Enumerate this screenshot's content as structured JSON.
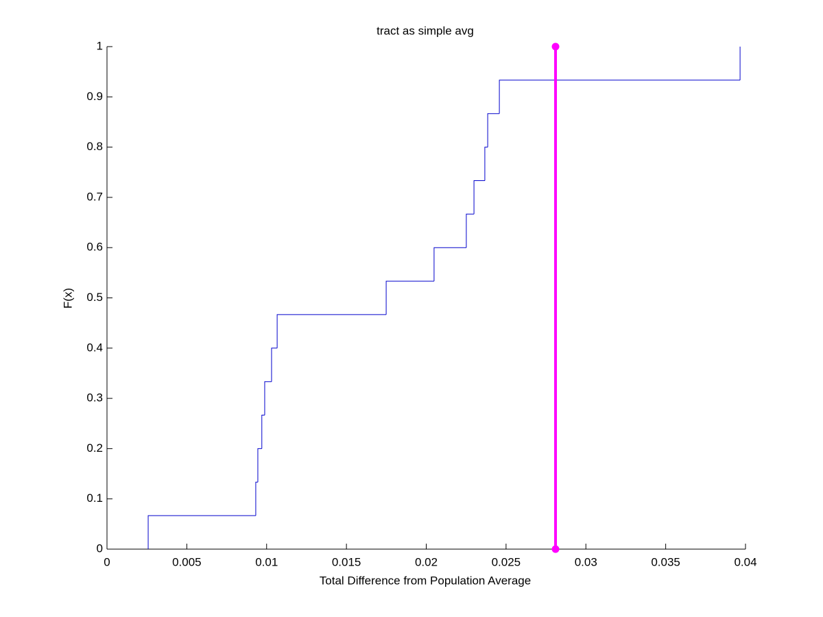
{
  "chart_data": {
    "type": "stairs",
    "title": "tract as simple avg",
    "xlabel": "Total Difference from Population Average",
    "ylabel": "F(x)",
    "xlim": [
      0,
      0.04
    ],
    "ylim": [
      0,
      1
    ],
    "xticks": [
      0,
      0.005,
      0.01,
      0.015,
      0.02,
      0.025,
      0.03,
      0.035,
      0.04
    ],
    "yticks": [
      0,
      0.1,
      0.2,
      0.3,
      0.4,
      0.5,
      0.6,
      0.7,
      0.8,
      0.9,
      1
    ],
    "series": [
      {
        "color": "#0000cc",
        "x": [
          0.00258,
          0.00932,
          0.00945,
          0.0097,
          0.00988,
          0.01031,
          0.01066,
          0.01749,
          0.02049,
          0.02251,
          0.02299,
          0.02367,
          0.02385,
          0.02458,
          0.03966
        ],
        "values": [
          0.0667,
          0.1333,
          0.2,
          0.2667,
          0.3333,
          0.4,
          0.4667,
          0.5333,
          0.6,
          0.6667,
          0.7333,
          0.8,
          0.8667,
          0.9333,
          1
        ]
      },
      {
        "color": "#ff00ff",
        "x": [
          0.0281,
          0.0281
        ],
        "values": [
          0,
          1
        ]
      }
    ]
  }
}
